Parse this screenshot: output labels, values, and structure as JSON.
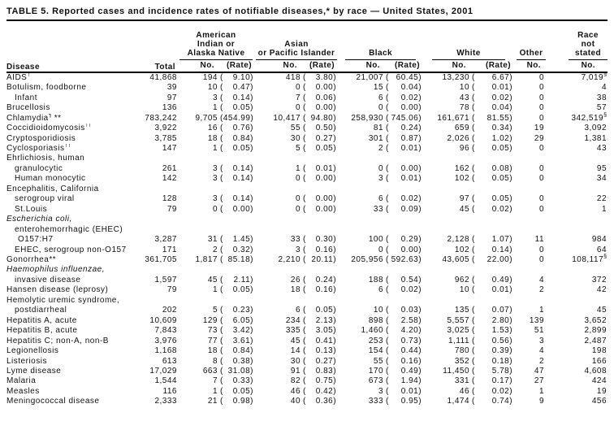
{
  "title": "TABLE 5. Reported cases and incidence rates of notifiable diseases,* by race — United States, 2001",
  "table": {
    "col_headers": {
      "disease": "Disease",
      "total": "Total",
      "no": "No.",
      "rate": "(Rate)",
      "groups": [
        {
          "id": "aian",
          "lines": [
            "American",
            "Indian or",
            "Alaska Native"
          ],
          "cols": 2
        },
        {
          "id": "api",
          "lines": [
            "Asian",
            "or Pacific Islander"
          ],
          "cols": 2
        },
        {
          "id": "black",
          "lines": [
            "Black"
          ],
          "cols": 2
        },
        {
          "id": "white",
          "lines": [
            "White"
          ],
          "cols": 2
        },
        {
          "id": "other",
          "lines": [
            "Other"
          ],
          "cols": 1
        },
        {
          "id": "ns",
          "lines": [
            "Race",
            "not",
            "stated"
          ],
          "cols": 1
        }
      ]
    },
    "rows": [
      {
        "label": "AIDS",
        "sup": "†",
        "total": "41,868",
        "cells": [
          [
            "194",
            "9.10"
          ],
          [
            "418",
            "3.80"
          ],
          [
            "21,007",
            "60.45"
          ],
          [
            "13,230",
            "6.67"
          ]
        ],
        "other": "0",
        "ns": "7,019",
        "ns_sup": "§"
      },
      {
        "label": "Botulism, foodborne",
        "total": "39",
        "cells": [
          [
            "10",
            "0.47"
          ],
          [
            "0",
            "0.00"
          ],
          [
            "15",
            "0.04"
          ],
          [
            "10",
            "0.01"
          ]
        ],
        "other": "0",
        "ns": "4"
      },
      {
        "label": "Infant",
        "indent": 1,
        "total": "97",
        "cells": [
          [
            "3",
            "0.14"
          ],
          [
            "7",
            "0.06"
          ],
          [
            "6",
            "0.02"
          ],
          [
            "43",
            "0.02"
          ]
        ],
        "other": "0",
        "ns": "38"
      },
      {
        "label": "Brucellosis",
        "total": "136",
        "cells": [
          [
            "1",
            "0.05"
          ],
          [
            "0",
            "0.00"
          ],
          [
            "0",
            "0.00"
          ],
          [
            "78",
            "0.04"
          ]
        ],
        "other": "0",
        "ns": "57"
      },
      {
        "label": "Chlamydia",
        "sup": "¶",
        "post": " **",
        "total": "783,242",
        "cells": [
          [
            "9,705",
            "454.99"
          ],
          [
            "10,417",
            "94.80"
          ],
          [
            "258,930",
            "745.06"
          ],
          [
            "161,671",
            "81.55"
          ]
        ],
        "other": "0",
        "ns": "342,519",
        "ns_sup": "§"
      },
      {
        "label": "Coccidioidomycosis",
        "sup": "††",
        "total": "3,922",
        "cells": [
          [
            "16",
            "0.76"
          ],
          [
            "55",
            "0.50"
          ],
          [
            "81",
            "0.24"
          ],
          [
            "659",
            "0.34"
          ]
        ],
        "other": "19",
        "ns": "3,092"
      },
      {
        "label": "Cryptosporidiosis",
        "total": "3,785",
        "cells": [
          [
            "18",
            "0.84"
          ],
          [
            "30",
            "0.27"
          ],
          [
            "301",
            "0.87"
          ],
          [
            "2,026",
            "1.02"
          ]
        ],
        "other": "29",
        "ns": "1,381"
      },
      {
        "label": "Cyclosporiasis",
        "sup": "††",
        "total": "147",
        "cells": [
          [
            "1",
            "0.05"
          ],
          [
            "5",
            "0.05"
          ],
          [
            "2",
            "0.01"
          ],
          [
            "96",
            "0.05"
          ]
        ],
        "other": "0",
        "ns": "43"
      },
      {
        "label": "Ehrlichiosis, human",
        "type": "label"
      },
      {
        "label": "granulocytic",
        "indent": 1,
        "total": "261",
        "cells": [
          [
            "3",
            "0.14"
          ],
          [
            "1",
            "0.01"
          ],
          [
            "0",
            "0.00"
          ],
          [
            "162",
            "0.08"
          ]
        ],
        "other": "0",
        "ns": "95"
      },
      {
        "label": "Human monocytic",
        "indent": 1,
        "total": "142",
        "cells": [
          [
            "3",
            "0.14"
          ],
          [
            "0",
            "0.00"
          ],
          [
            "3",
            "0.01"
          ],
          [
            "102",
            "0.05"
          ]
        ],
        "other": "0",
        "ns": "34"
      },
      {
        "label": "Encephalitis, California",
        "type": "label"
      },
      {
        "label": "serogroup viral",
        "indent": 1,
        "total": "128",
        "cells": [
          [
            "3",
            "0.14"
          ],
          [
            "0",
            "0.00"
          ],
          [
            "6",
            "0.02"
          ],
          [
            "97",
            "0.05"
          ]
        ],
        "other": "0",
        "ns": "22"
      },
      {
        "label": "St.Louis",
        "indent": 1,
        "total": "79",
        "cells": [
          [
            "0",
            "0.00"
          ],
          [
            "0",
            "0.00"
          ],
          [
            "33",
            "0.09"
          ],
          [
            "45",
            "0.02"
          ]
        ],
        "other": "0",
        "ns": "1"
      },
      {
        "label": "Escherichia coli,",
        "type": "label",
        "italic": true
      },
      {
        "label": "enterohemorrhagic (EHEC)",
        "type": "label",
        "indent": 1
      },
      {
        "label": "O157:H7",
        "indent": 2,
        "total": "3,287",
        "cells": [
          [
            "31",
            "1.45"
          ],
          [
            "33",
            "0.30"
          ],
          [
            "100",
            "0.29"
          ],
          [
            "2,128",
            "1.07"
          ]
        ],
        "other": "11",
        "ns": "984"
      },
      {
        "label": "EHEC, serogroup non-O157",
        "indent": 1,
        "total": "171",
        "cells": [
          [
            "2",
            "0.32"
          ],
          [
            "3",
            "0.16"
          ],
          [
            "0",
            "0.00"
          ],
          [
            "102",
            "0.14"
          ]
        ],
        "other": "0",
        "ns": "64"
      },
      {
        "label": "Gonorrhea",
        "post": "**",
        "total": "361,705",
        "cells": [
          [
            "1,817",
            "85.18"
          ],
          [
            "2,210",
            "20.11"
          ],
          [
            "205,956",
            "592.63"
          ],
          [
            "43,605",
            "22.00"
          ]
        ],
        "other": "0",
        "ns": "108,117",
        "ns_sup": "§"
      },
      {
        "label": "Haemophilus influenzae,",
        "type": "label",
        "italic": true
      },
      {
        "label": "invasive disease",
        "indent": 1,
        "total": "1,597",
        "cells": [
          [
            "45",
            "2.11"
          ],
          [
            "26",
            "0.24"
          ],
          [
            "188",
            "0.54"
          ],
          [
            "962",
            "0.49"
          ]
        ],
        "other": "4",
        "ns": "372"
      },
      {
        "label": "Hansen disease (leprosy)",
        "total": "79",
        "cells": [
          [
            "1",
            "0.05"
          ],
          [
            "18",
            "0.16"
          ],
          [
            "6",
            "0.02"
          ],
          [
            "10",
            "0.01"
          ]
        ],
        "other": "2",
        "ns": "42"
      },
      {
        "label": "Hemolytic uremic syndrome,",
        "type": "label"
      },
      {
        "label": "postdiarrheal",
        "indent": 1,
        "total": "202",
        "cells": [
          [
            "5",
            "0.23"
          ],
          [
            "6",
            "0.05"
          ],
          [
            "10",
            "0.03"
          ],
          [
            "135",
            "0.07"
          ]
        ],
        "other": "1",
        "ns": "45"
      },
      {
        "label": "Hepatitis A, acute",
        "total": "10,609",
        "cells": [
          [
            "129",
            "6.05"
          ],
          [
            "234",
            "2.13"
          ],
          [
            "898",
            "2.58"
          ],
          [
            "5,557",
            "2.80"
          ]
        ],
        "other": "139",
        "ns": "3,652"
      },
      {
        "label": "Hepatitis B, acute",
        "total": "7,843",
        "cells": [
          [
            "73",
            "3.42"
          ],
          [
            "335",
            "3.05"
          ],
          [
            "1,460",
            "4.20"
          ],
          [
            "3,025",
            "1.53"
          ]
        ],
        "other": "51",
        "ns": "2,899"
      },
      {
        "label": "Hepatitis C; non-A, non-B",
        "total": "3,976",
        "cells": [
          [
            "77",
            "3.61"
          ],
          [
            "45",
            "0.41"
          ],
          [
            "253",
            "0.73"
          ],
          [
            "1,111",
            "0.56"
          ]
        ],
        "other": "3",
        "ns": "2,487"
      },
      {
        "label": "Legionellosis",
        "total": "1,168",
        "cells": [
          [
            "18",
            "0.84"
          ],
          [
            "14",
            "0.13"
          ],
          [
            "154",
            "0.44"
          ],
          [
            "780",
            "0.39"
          ]
        ],
        "other": "4",
        "ns": "198"
      },
      {
        "label": "Listeriosis",
        "total": "613",
        "cells": [
          [
            "8",
            "0.38"
          ],
          [
            "30",
            "0.27"
          ],
          [
            "55",
            "0.16"
          ],
          [
            "352",
            "0.18"
          ]
        ],
        "other": "2",
        "ns": "166"
      },
      {
        "label": "Lyme disease",
        "total": "17,029",
        "cells": [
          [
            "663",
            "31.08"
          ],
          [
            "91",
            "0.83"
          ],
          [
            "170",
            "0.49"
          ],
          [
            "11,450",
            "5.78"
          ]
        ],
        "other": "47",
        "ns": "4,608"
      },
      {
        "label": "Malaria",
        "total": "1,544",
        "cells": [
          [
            "7",
            "0.33"
          ],
          [
            "82",
            "0.75"
          ],
          [
            "673",
            "1.94"
          ],
          [
            "331",
            "0.17"
          ]
        ],
        "other": "27",
        "ns": "424"
      },
      {
        "label": "Measles",
        "total": "116",
        "cells": [
          [
            "1",
            "0.05"
          ],
          [
            "46",
            "0.42"
          ],
          [
            "3",
            "0.01"
          ],
          [
            "46",
            "0.02"
          ]
        ],
        "other": "1",
        "ns": "19"
      },
      {
        "label": "Meningococcal disease",
        "total": "2,333",
        "cells": [
          [
            "21",
            "0.98"
          ],
          [
            "40",
            "0.36"
          ],
          [
            "333",
            "0.95"
          ],
          [
            "1,474",
            "0.74"
          ]
        ],
        "other": "9",
        "ns": "456"
      }
    ]
  }
}
